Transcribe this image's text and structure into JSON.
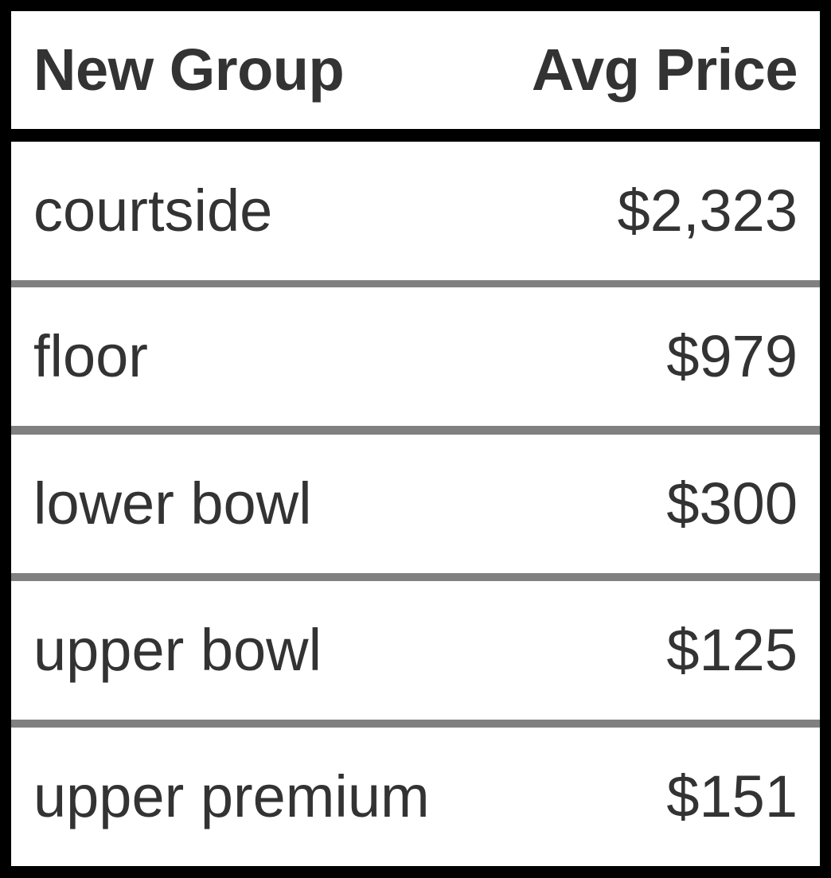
{
  "table": {
    "columns": [
      "New Group",
      "Avg Price"
    ],
    "rows": [
      {
        "group": "courtside",
        "avg_price": "$2,323"
      },
      {
        "group": "floor",
        "avg_price": "$979"
      },
      {
        "group": "lower bowl",
        "avg_price": "$300"
      },
      {
        "group": "upper bowl",
        "avg_price": "$125"
      },
      {
        "group": "upper premium",
        "avg_price": "$151"
      }
    ]
  },
  "colors": {
    "border": "#000000",
    "row_divider": "#808080",
    "text": "#333333",
    "background": "#ffffff"
  }
}
